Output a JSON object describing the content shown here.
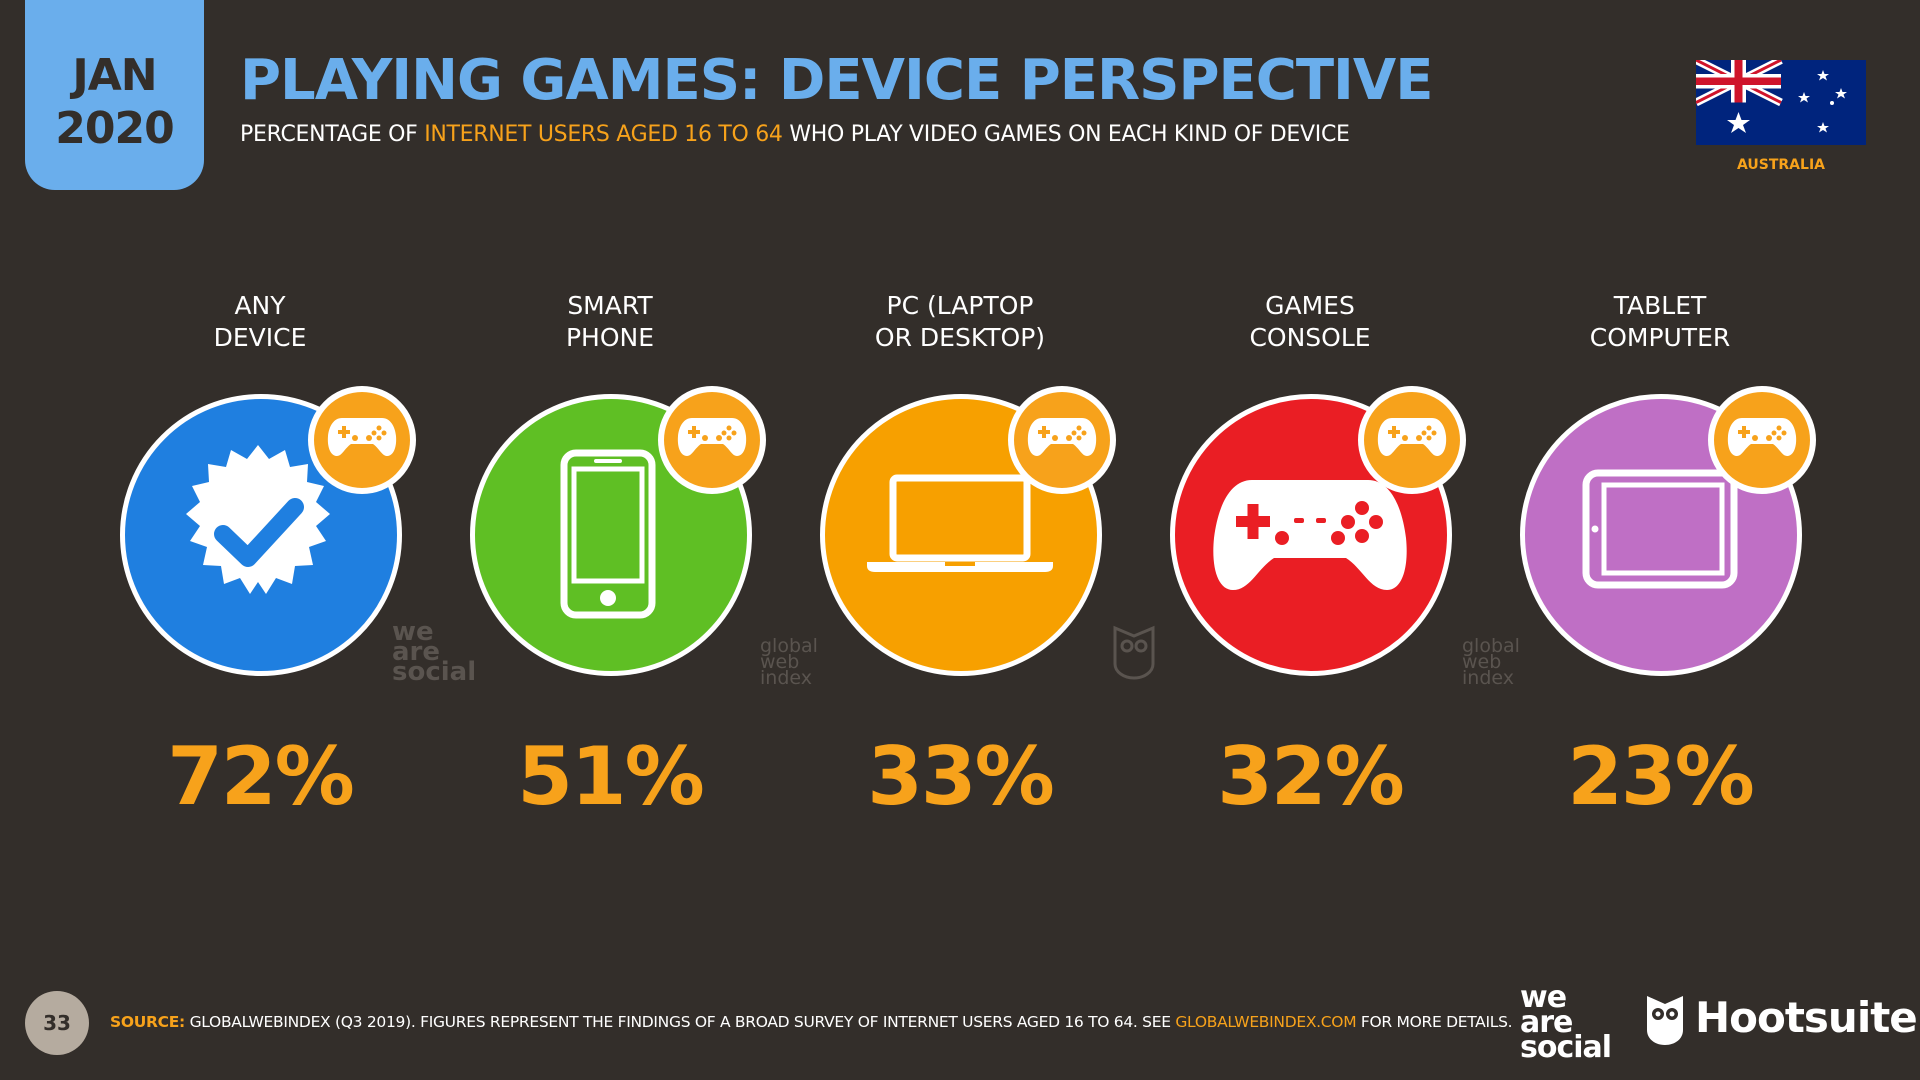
{
  "header": {
    "date_month": "JAN",
    "date_year": "2020",
    "title": "PLAYING GAMES: DEVICE PERSPECTIVE",
    "subtitle_pre": "PERCENTAGE OF ",
    "subtitle_highlight": "INTERNET USERS AGED 16 TO 64",
    "subtitle_post": " WHO PLAY VIDEO GAMES ON EACH KIND OF DEVICE",
    "country": "AUSTRALIA"
  },
  "devices": [
    {
      "label_line1": "ANY",
      "label_line2": "DEVICE",
      "value": "72%",
      "color": "#1f7fe0",
      "icon": "verified-badge-icon"
    },
    {
      "label_line1": "SMART",
      "label_line2": "PHONE",
      "value": "51%",
      "color": "#5fbf24",
      "icon": "smartphone-icon"
    },
    {
      "label_line1": "PC (LAPTOP",
      "label_line2": "OR DESKTOP)",
      "value": "33%",
      "color": "#f7a000",
      "icon": "laptop-icon"
    },
    {
      "label_line1": "GAMES",
      "label_line2": "CONSOLE",
      "value": "32%",
      "color": "#ea1e24",
      "icon": "gamepad-icon"
    },
    {
      "label_line1": "TABLET",
      "label_line2": "COMPUTER",
      "value": "23%",
      "color": "#bf6fc5",
      "icon": "tablet-icon"
    }
  ],
  "watermarks": {
    "was_line1": "we",
    "was_line2": "are",
    "was_line3": "social",
    "gwi_line1": "global",
    "gwi_line2": "web",
    "gwi_line3": "index"
  },
  "footer": {
    "page_number": "33",
    "source_label": "SOURCE:",
    "source_text_pre": " GLOBALWEBINDEX (Q3 2019). FIGURES REPRESENT THE FINDINGS OF A BROAD SURVEY OF INTERNET USERS AGED 16 TO 64. SEE ",
    "source_link": "GLOBALWEBINDEX.COM",
    "source_text_post": " FOR MORE DETAILS.",
    "logo_line1": "we",
    "logo_line2": "are",
    "logo_line3": "social",
    "hootsuite": "Hootsuite"
  },
  "colors": {
    "accent_blue": "#6aaeec",
    "accent_orange": "#f7a21b",
    "background": "#332e2a"
  }
}
